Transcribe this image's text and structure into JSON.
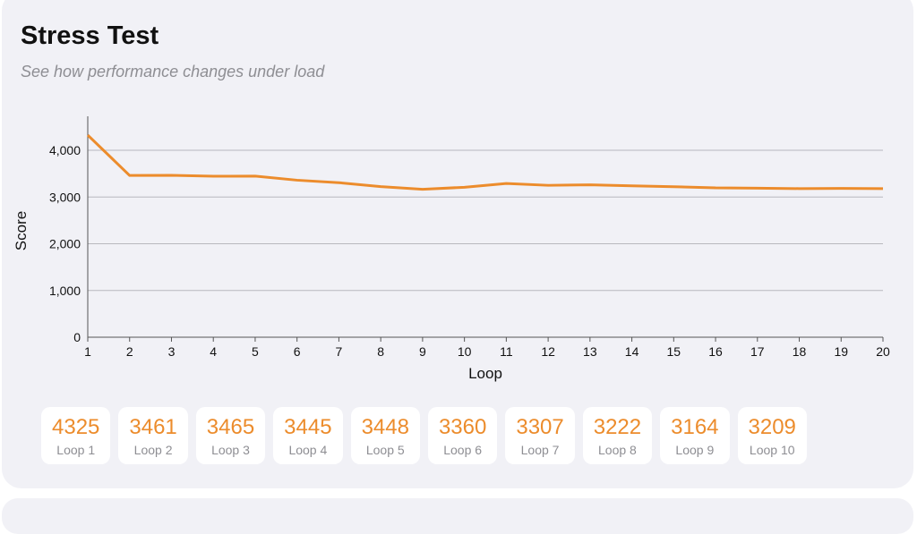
{
  "header": {
    "title": "Stress Test",
    "subtitle": "See how performance changes under load"
  },
  "chart_data": {
    "type": "line",
    "xlabel": "Loop",
    "ylabel": "Score",
    "x": [
      1,
      2,
      3,
      4,
      5,
      6,
      7,
      8,
      9,
      10,
      11,
      12,
      13,
      14,
      15,
      16,
      17,
      18,
      19,
      20
    ],
    "series": [
      {
        "name": "Score",
        "color": "#ec8c2c",
        "values": [
          4325,
          3461,
          3465,
          3445,
          3448,
          3360,
          3307,
          3222,
          3164,
          3209,
          3290,
          3250,
          3260,
          3240,
          3220,
          3195,
          3190,
          3180,
          3185,
          3180
        ]
      }
    ],
    "yticks": [
      0,
      1000,
      2000,
      3000,
      4000
    ],
    "ytick_labels": [
      "0",
      "1,000",
      "2,000",
      "3,000",
      "4,000"
    ],
    "xtick_labels": [
      "1",
      "2",
      "3",
      "4",
      "5",
      "6",
      "7",
      "8",
      "9",
      "10",
      "11",
      "12",
      "13",
      "14",
      "15",
      "16",
      "17",
      "18",
      "19",
      "20"
    ],
    "xlim": [
      1,
      20
    ],
    "ylim": [
      0,
      4750
    ],
    "grid": true
  },
  "loops": [
    {
      "value": "4325",
      "label": "Loop 1"
    },
    {
      "value": "3461",
      "label": "Loop 2"
    },
    {
      "value": "3465",
      "label": "Loop 3"
    },
    {
      "value": "3445",
      "label": "Loop 4"
    },
    {
      "value": "3448",
      "label": "Loop 5"
    },
    {
      "value": "3360",
      "label": "Loop 6"
    },
    {
      "value": "3307",
      "label": "Loop 7"
    },
    {
      "value": "3222",
      "label": "Loop 8"
    },
    {
      "value": "3164",
      "label": "Loop 9"
    },
    {
      "value": "3209",
      "label": "Loop 10"
    }
  ]
}
